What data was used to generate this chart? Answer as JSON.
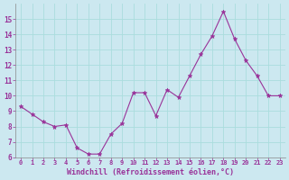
{
  "x": [
    0,
    1,
    2,
    3,
    4,
    5,
    6,
    7,
    8,
    9,
    10,
    11,
    12,
    13,
    14,
    15,
    16,
    17,
    18,
    19,
    20,
    21,
    22,
    23
  ],
  "y": [
    9.3,
    8.8,
    8.3,
    8.0,
    8.1,
    6.6,
    6.2,
    6.2,
    7.5,
    8.2,
    10.2,
    10.2,
    8.7,
    10.4,
    9.9,
    11.3,
    12.7,
    13.9,
    15.5,
    13.7,
    12.3,
    11.3,
    10.0,
    10.0
  ],
  "line_color": "#993399",
  "marker": "*",
  "marker_color": "#993399",
  "bg_color": "#cce8f0",
  "grid_color": "#aadddd",
  "xlabel": "Windchill (Refroidissement éolien,°C)",
  "xlabel_color": "#993399",
  "tick_color": "#993399",
  "ylim": [
    6,
    16
  ],
  "xlim": [
    -0.5,
    23.5
  ],
  "yticks": [
    6,
    7,
    8,
    9,
    10,
    11,
    12,
    13,
    14,
    15
  ],
  "xticks": [
    0,
    1,
    2,
    3,
    4,
    5,
    6,
    7,
    8,
    9,
    10,
    11,
    12,
    13,
    14,
    15,
    16,
    17,
    18,
    19,
    20,
    21,
    22,
    23
  ]
}
